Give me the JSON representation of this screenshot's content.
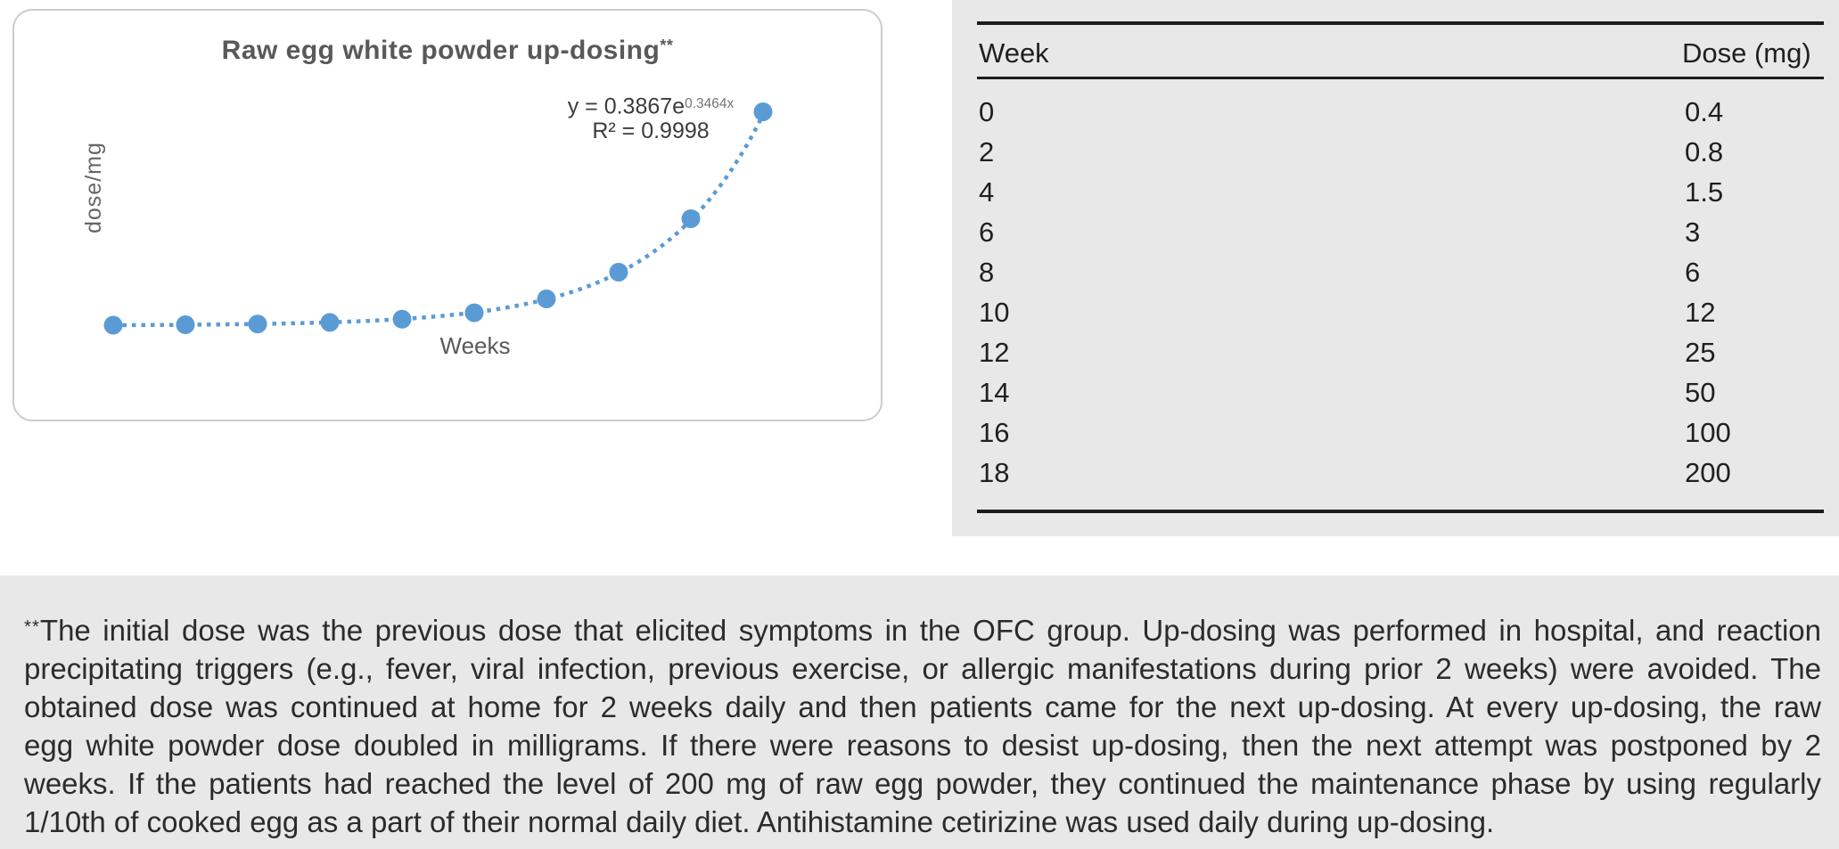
{
  "chart": {
    "title": "Raw egg white powder up-dosing",
    "title_marker": "**",
    "equation_base": "y = 0.3867e",
    "equation_exponent": "0.3464x",
    "r_squared": "R² = 0.9998",
    "y_axis_label": "dose/mg",
    "x_axis_label": "Weeks"
  },
  "chart_data": {
    "type": "scatter",
    "title": "Raw egg white powder up-dosing**",
    "xlabel": "Weeks",
    "ylabel": "dose/mg",
    "x": [
      0,
      2,
      4,
      6,
      8,
      10,
      12,
      14,
      16,
      18
    ],
    "y": [
      0.4,
      0.8,
      1.5,
      3,
      6,
      12,
      25,
      50,
      100,
      200
    ],
    "xlim": [
      0,
      18
    ],
    "ylim": [
      0,
      210
    ],
    "grid": false,
    "axes_visible": false,
    "legend": "none",
    "marker_style": "filled-circle",
    "trendline": {
      "type": "exponential",
      "a": 0.3867,
      "b": 0.3464,
      "r2": 0.9998,
      "style": "dotted"
    }
  },
  "table": {
    "columns": [
      "Week",
      "Dose (mg)"
    ],
    "rows": [
      [
        "0",
        "0.4"
      ],
      [
        "2",
        "0.8"
      ],
      [
        "4",
        "1.5"
      ],
      [
        "6",
        "3"
      ],
      [
        "8",
        "6"
      ],
      [
        "10",
        "12"
      ],
      [
        "12",
        "25"
      ],
      [
        "14",
        "50"
      ],
      [
        "16",
        "100"
      ],
      [
        "18",
        "200"
      ]
    ]
  },
  "footnote": {
    "marker": "**",
    "lines": [
      "The initial dose was the previous dose that elicited symptoms in the OFC group. Up-dosing was performed in hospital, and reaction",
      "precipitating triggers (e.g., fever, viral infection, previous exercise, or allergic manifestations during prior 2 weeks) were avoided. The",
      "obtained dose was continued at home for 2 weeks daily and then patients came for the next up-dosing. At every up-dosing, the raw",
      "egg white powder dose doubled in milligrams. If there were reasons to desist up-dosing, then the next attempt was postponed by 2",
      "weeks. If the patients had reached the level of 200 mg of raw egg powder, they continued the maintenance phase by using regularly",
      "1/10th of cooked egg as a part of their normal daily diet. Antihistamine cetirizine was used daily during up-dosing."
    ]
  },
  "colors": {
    "accent_blue": "#5B9BD5",
    "panel_border": "#CCCCCC",
    "block_bg": "#E8E8E9",
    "chart_text": "#595959",
    "equation_text": "#3C3C3C",
    "table_text": "#1F1F1F",
    "footnote_text": "#2B2B2B",
    "rule": "#1C1C1C"
  }
}
